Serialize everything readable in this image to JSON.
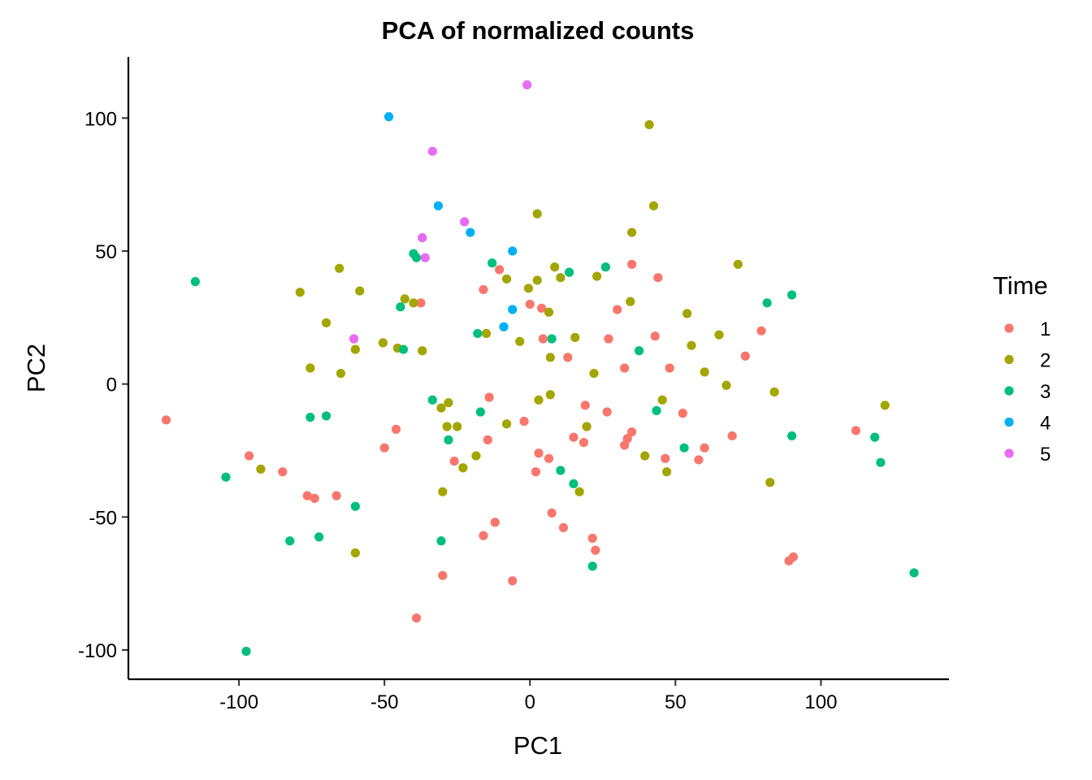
{
  "chart_data": {
    "type": "scatter",
    "title": "PCA of normalized counts",
    "xlabel": "PC1",
    "ylabel": "PC2",
    "xlim": [
      -138,
      144
    ],
    "ylim": [
      -111,
      123
    ],
    "xticks": [
      -100,
      -50,
      0,
      50,
      100
    ],
    "yticks": [
      -100,
      -50,
      0,
      50,
      100
    ],
    "grid": false,
    "legend": {
      "title": "Time",
      "position": "right"
    },
    "series": [
      {
        "name": "1",
        "color": "#F8766D",
        "points": [
          [
            -125,
            -13.5
          ],
          [
            -96.5,
            -27
          ],
          [
            -85,
            -33
          ],
          [
            -76.5,
            -42
          ],
          [
            -74,
            -43
          ],
          [
            -66.5,
            -42
          ],
          [
            -50,
            -24
          ],
          [
            -46,
            -17
          ],
          [
            -37.5,
            30.5
          ],
          [
            -39,
            -88
          ],
          [
            -30,
            -72
          ],
          [
            -26,
            -29
          ],
          [
            -16,
            35.5
          ],
          [
            -16,
            -57
          ],
          [
            -14.5,
            -21
          ],
          [
            -14,
            -5
          ],
          [
            -12,
            -52
          ],
          [
            -10.5,
            43
          ],
          [
            -6,
            -74
          ],
          [
            -2,
            -14
          ],
          [
            0,
            30
          ],
          [
            2,
            -33
          ],
          [
            3,
            -26
          ],
          [
            4,
            28.5
          ],
          [
            4.5,
            17
          ],
          [
            6.5,
            -28
          ],
          [
            7.5,
            -48.5
          ],
          [
            11.5,
            -54
          ],
          [
            13,
            10
          ],
          [
            15,
            -20
          ],
          [
            18.5,
            -22
          ],
          [
            19,
            -8
          ],
          [
            21.5,
            -58
          ],
          [
            22.5,
            -62.5
          ],
          [
            26.5,
            -10.5
          ],
          [
            27,
            17
          ],
          [
            30,
            28
          ],
          [
            32.5,
            -23
          ],
          [
            32.5,
            6
          ],
          [
            33.5,
            -20.5
          ],
          [
            35,
            -18
          ],
          [
            35,
            45
          ],
          [
            43,
            18
          ],
          [
            44,
            40
          ],
          [
            46.5,
            -28
          ],
          [
            48,
            6
          ],
          [
            52.5,
            -11
          ],
          [
            58,
            -28.5
          ],
          [
            60,
            -24
          ],
          [
            69.5,
            -19.5
          ],
          [
            74,
            10.5
          ],
          [
            79.5,
            20
          ],
          [
            89,
            -66.5
          ],
          [
            90.5,
            -65
          ],
          [
            112,
            -17.5
          ]
        ]
      },
      {
        "name": "2",
        "color": "#A3A500",
        "points": [
          [
            -92.5,
            -32
          ],
          [
            -79,
            34.5
          ],
          [
            -75.5,
            6
          ],
          [
            -70,
            23
          ],
          [
            -65.5,
            43.5
          ],
          [
            -65,
            4
          ],
          [
            -60,
            13
          ],
          [
            -60,
            -63.5
          ],
          [
            -58.5,
            35
          ],
          [
            -50.5,
            15.5
          ],
          [
            -45.5,
            13.5
          ],
          [
            -43,
            32
          ],
          [
            -40,
            30.5
          ],
          [
            -37,
            12.5
          ],
          [
            -30.5,
            -9
          ],
          [
            -30,
            -40.5
          ],
          [
            -28.5,
            -16
          ],
          [
            -28,
            -7
          ],
          [
            -25,
            -16
          ],
          [
            -23,
            -31.5
          ],
          [
            -18.5,
            -27
          ],
          [
            -15,
            19
          ],
          [
            -8,
            39.5
          ],
          [
            -8,
            -15
          ],
          [
            -3.5,
            16
          ],
          [
            -0.5,
            36
          ],
          [
            2.5,
            39
          ],
          [
            2.5,
            64
          ],
          [
            3,
            -6
          ],
          [
            6.5,
            27
          ],
          [
            7,
            -4
          ],
          [
            7,
            10
          ],
          [
            8.5,
            44
          ],
          [
            10.5,
            40
          ],
          [
            15.5,
            17.5
          ],
          [
            17,
            -40.5
          ],
          [
            19.5,
            -16
          ],
          [
            22,
            4
          ],
          [
            23,
            40.5
          ],
          [
            34.5,
            31
          ],
          [
            35,
            57
          ],
          [
            39.5,
            -27
          ],
          [
            41,
            97.5
          ],
          [
            42.5,
            67
          ],
          [
            45.5,
            -6
          ],
          [
            47,
            -33
          ],
          [
            54,
            26.5
          ],
          [
            55.5,
            14.5
          ],
          [
            60,
            4.5
          ],
          [
            65,
            18.5
          ],
          [
            67.5,
            -0.5
          ],
          [
            71.5,
            45
          ],
          [
            82.5,
            -37
          ],
          [
            84,
            -3
          ],
          [
            122,
            -8
          ]
        ]
      },
      {
        "name": "3",
        "color": "#00BF7D",
        "points": [
          [
            -115,
            38.5
          ],
          [
            -104.5,
            -35
          ],
          [
            -97.5,
            -100.5
          ],
          [
            -82.5,
            -59
          ],
          [
            -75.5,
            -12.5
          ],
          [
            -72.5,
            -57.5
          ],
          [
            -70,
            -12
          ],
          [
            -60,
            -46
          ],
          [
            -44.5,
            29
          ],
          [
            -43.5,
            13
          ],
          [
            -40,
            49
          ],
          [
            -39,
            47.5
          ],
          [
            -33.5,
            -6
          ],
          [
            -30.5,
            -59
          ],
          [
            -28,
            -21
          ],
          [
            -18,
            19
          ],
          [
            -17,
            -10.5
          ],
          [
            -13,
            45.5
          ],
          [
            7.5,
            17
          ],
          [
            10.5,
            -32.5
          ],
          [
            13.5,
            42
          ],
          [
            15,
            -37.5
          ],
          [
            21.5,
            -68.5
          ],
          [
            26,
            44
          ],
          [
            37.5,
            12.5
          ],
          [
            43.5,
            -10
          ],
          [
            53,
            -24
          ],
          [
            81.5,
            30.5
          ],
          [
            90,
            33.5
          ],
          [
            90,
            -19.5
          ],
          [
            118.5,
            -20
          ],
          [
            120.5,
            -29.5
          ],
          [
            132,
            -71
          ]
        ]
      },
      {
        "name": "4",
        "color": "#00B0F6",
        "points": [
          [
            -48.5,
            100.5
          ],
          [
            -31.5,
            67
          ],
          [
            -20.5,
            57
          ],
          [
            -9,
            21.5
          ],
          [
            -6,
            28
          ],
          [
            -6,
            50
          ]
        ]
      },
      {
        "name": "5",
        "color": "#E76BF3",
        "points": [
          [
            -60.5,
            17
          ],
          [
            -37,
            55
          ],
          [
            -36,
            47.5
          ],
          [
            -33.5,
            87.5
          ],
          [
            -22.5,
            61
          ],
          [
            -1,
            112.5
          ]
        ]
      }
    ]
  }
}
